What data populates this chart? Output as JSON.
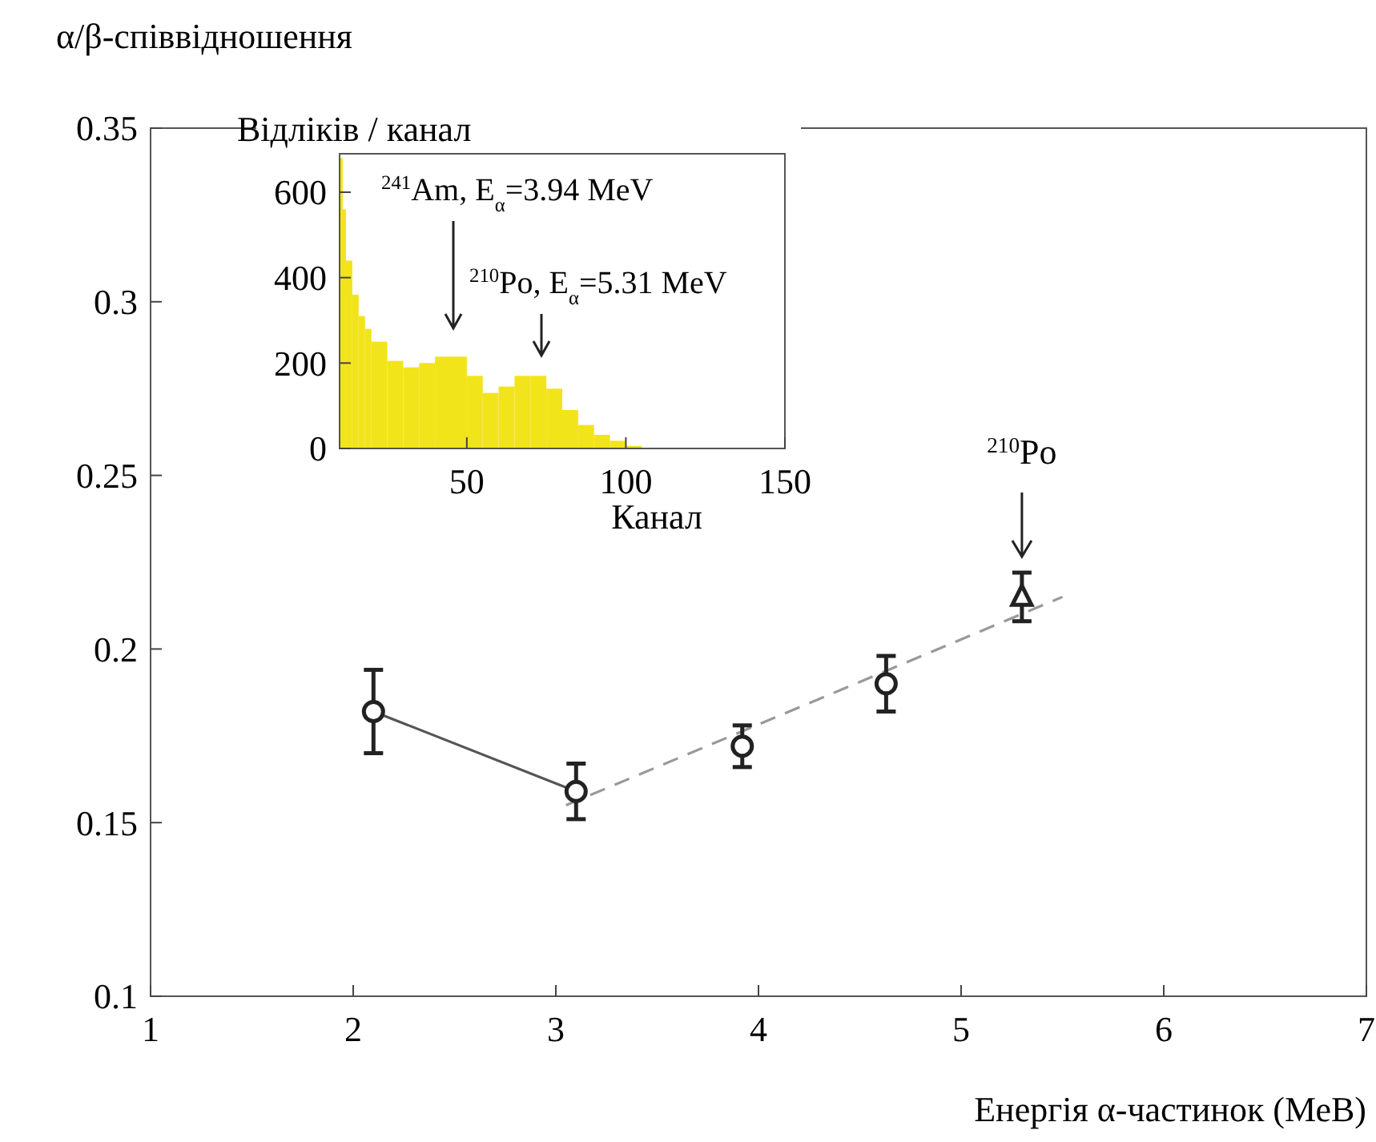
{
  "chart_data": [
    {
      "type": "scatter",
      "ylabel": "α/β-співвідношення",
      "xlabel": "Енергія α-частинок (МеВ)",
      "xlim": [
        1,
        7
      ],
      "ylim": [
        0.1,
        0.35
      ],
      "xticks": [
        1,
        2,
        3,
        4,
        5,
        6,
        7
      ],
      "yticks": [
        0.1,
        0.15,
        0.2,
        0.25,
        0.3,
        0.35
      ],
      "grid": false,
      "annotations": [
        {
          "text": "$^{210}$Po",
          "x": 5.3,
          "y": 0.222
        }
      ],
      "series": [
        {
          "type": "line",
          "x": [
            2.1,
            3.1
          ],
          "values": [
            0.182,
            0.159
          ],
          "color": "#555555",
          "line_style": "solid",
          "marker": "none"
        },
        {
          "type": "line",
          "x": [
            3.05,
            5.5
          ],
          "values": [
            0.155,
            0.215
          ],
          "color": "#999999",
          "line_style": "dashed",
          "marker": "none"
        },
        {
          "type": "scatter",
          "x": [
            2.1,
            3.1,
            3.92,
            4.63
          ],
          "values": [
            0.182,
            0.159,
            0.172,
            0.19
          ],
          "errors": [
            0.012,
            0.008,
            0.006,
            0.008
          ],
          "color": "#222222",
          "marker": "circle"
        },
        {
          "type": "scatter",
          "x": [
            5.3
          ],
          "values": [
            0.215
          ],
          "errors": [
            0.007
          ],
          "color": "#222222",
          "marker": "triangle"
        }
      ]
    },
    {
      "type": "histogram",
      "ylabel": "Відліків / канал",
      "xlabel": "Канал",
      "xlim": [
        10,
        150
      ],
      "ylim": [
        0,
        690
      ],
      "xticks": [
        50,
        100,
        150
      ],
      "yticks": [
        0,
        200,
        400,
        600
      ],
      "grid": false,
      "color": "#f2e41a",
      "bins": [
        10,
        11,
        12,
        14,
        16,
        18,
        20,
        25,
        30,
        35,
        40,
        45,
        50,
        55,
        60,
        65,
        70,
        75,
        80,
        85,
        90,
        95,
        100,
        105
      ],
      "values": [
        680,
        560,
        440,
        360,
        310,
        280,
        250,
        205,
        190,
        200,
        215,
        215,
        170,
        130,
        145,
        170,
        170,
        140,
        90,
        55,
        32,
        18,
        6
      ],
      "annotations": [
        "$^{241}$Am, E$_{α}$=3.94 MeV",
        "$^{210}$Po, E$_{α}$=5.31 MeV"
      ]
    }
  ]
}
